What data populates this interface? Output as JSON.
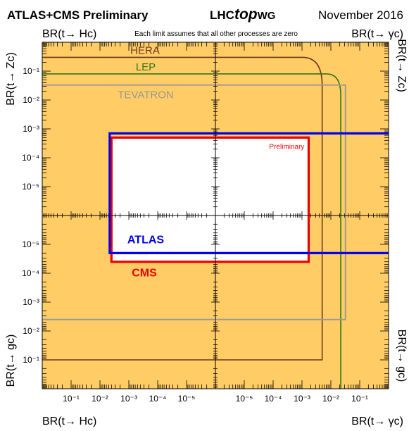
{
  "header": {
    "experiments": "ATLAS+CMS Preliminary",
    "wg_prefix": "LHC",
    "wg_italic": "top",
    "wg_suffix": "WG",
    "date": "November 2016",
    "note": "Each limit assumes that all other processes are zero"
  },
  "axes": {
    "top_left": "BR(t→ Hc)",
    "top_right": "BR(t→ γc)",
    "left_top": "BR(t→ Zc)",
    "right_top": "BR(t→ Zc)",
    "left_bottom": "BR(t→ gc)",
    "right_bottom": "BR(t→ gc)",
    "bottom_left": "BR(t→ Hc)",
    "bottom_right": "BR(t→ γc)"
  },
  "colors": {
    "excluded_fill": "#ffcc66",
    "allowed_fill": "#ffffff",
    "HERA": "#6b3a1f",
    "LEP": "#2d7a1a",
    "TEVATRON": "#999999",
    "ATLAS": "#0000ee",
    "CMS": "#ee0000"
  },
  "chart_data": {
    "type": "exclusion-limits",
    "scale": "log",
    "quadrants": {
      "top_left": {
        "x": "BR(t→Hc)",
        "y": "BR(t→Zc)"
      },
      "top_right": {
        "x": "BR(t→γc)",
        "y": "BR(t→Zc)"
      },
      "bottom_left": {
        "x": "BR(t→Hc)",
        "y": "BR(t→gc)"
      },
      "bottom_right": {
        "x": "BR(t→γc)",
        "y": "BR(t→gc)"
      }
    },
    "axis_ranges": {
      "min": 1e-06,
      "max": 1
    },
    "ticks": {
      "x_left": [
        "10⁻¹",
        "10⁻²",
        "10⁻³",
        "10⁻⁴",
        "10⁻⁵"
      ],
      "x_right": [
        "10⁻⁵",
        "10⁻⁴",
        "10⁻³",
        "10⁻²",
        "10⁻¹"
      ],
      "y_top": [
        "10⁻¹",
        "10⁻²",
        "10⁻³",
        "10⁻⁴",
        "10⁻⁵"
      ],
      "y_bottom": [
        "10⁻⁵",
        "10⁻⁴",
        "10⁻³",
        "10⁻²",
        "10⁻¹"
      ]
    },
    "series": [
      {
        "name": "HERA",
        "limits": {
          "Hc": null,
          "Zc": 0.3,
          "gamma_c": 0.005,
          "gc": 0.1
        },
        "style": "rounded-corner"
      },
      {
        "name": "LEP",
        "limits": {
          "Hc": null,
          "Zc": 0.08,
          "gamma_c": 0.022,
          "gc": null
        },
        "style": "rounded-corner"
      },
      {
        "name": "TEVATRON",
        "limits": {
          "Hc": null,
          "Zc": 0.033,
          "gamma_c": 0.032,
          "gc": 0.004
        },
        "style": "rectangle"
      },
      {
        "name": "ATLAS",
        "limits": {
          "Hc": 0.0046,
          "Zc": 0.0007,
          "gamma_c": null,
          "gc": 2e-05
        },
        "style": "rectangle"
      },
      {
        "name": "CMS",
        "limits": {
          "Hc": 0.004,
          "Zc": 0.0005,
          "gamma_c": 0.0017,
          "gc": 4e-05
        },
        "style": "rectangle"
      }
    ],
    "annotations": [
      "Preliminary"
    ]
  }
}
